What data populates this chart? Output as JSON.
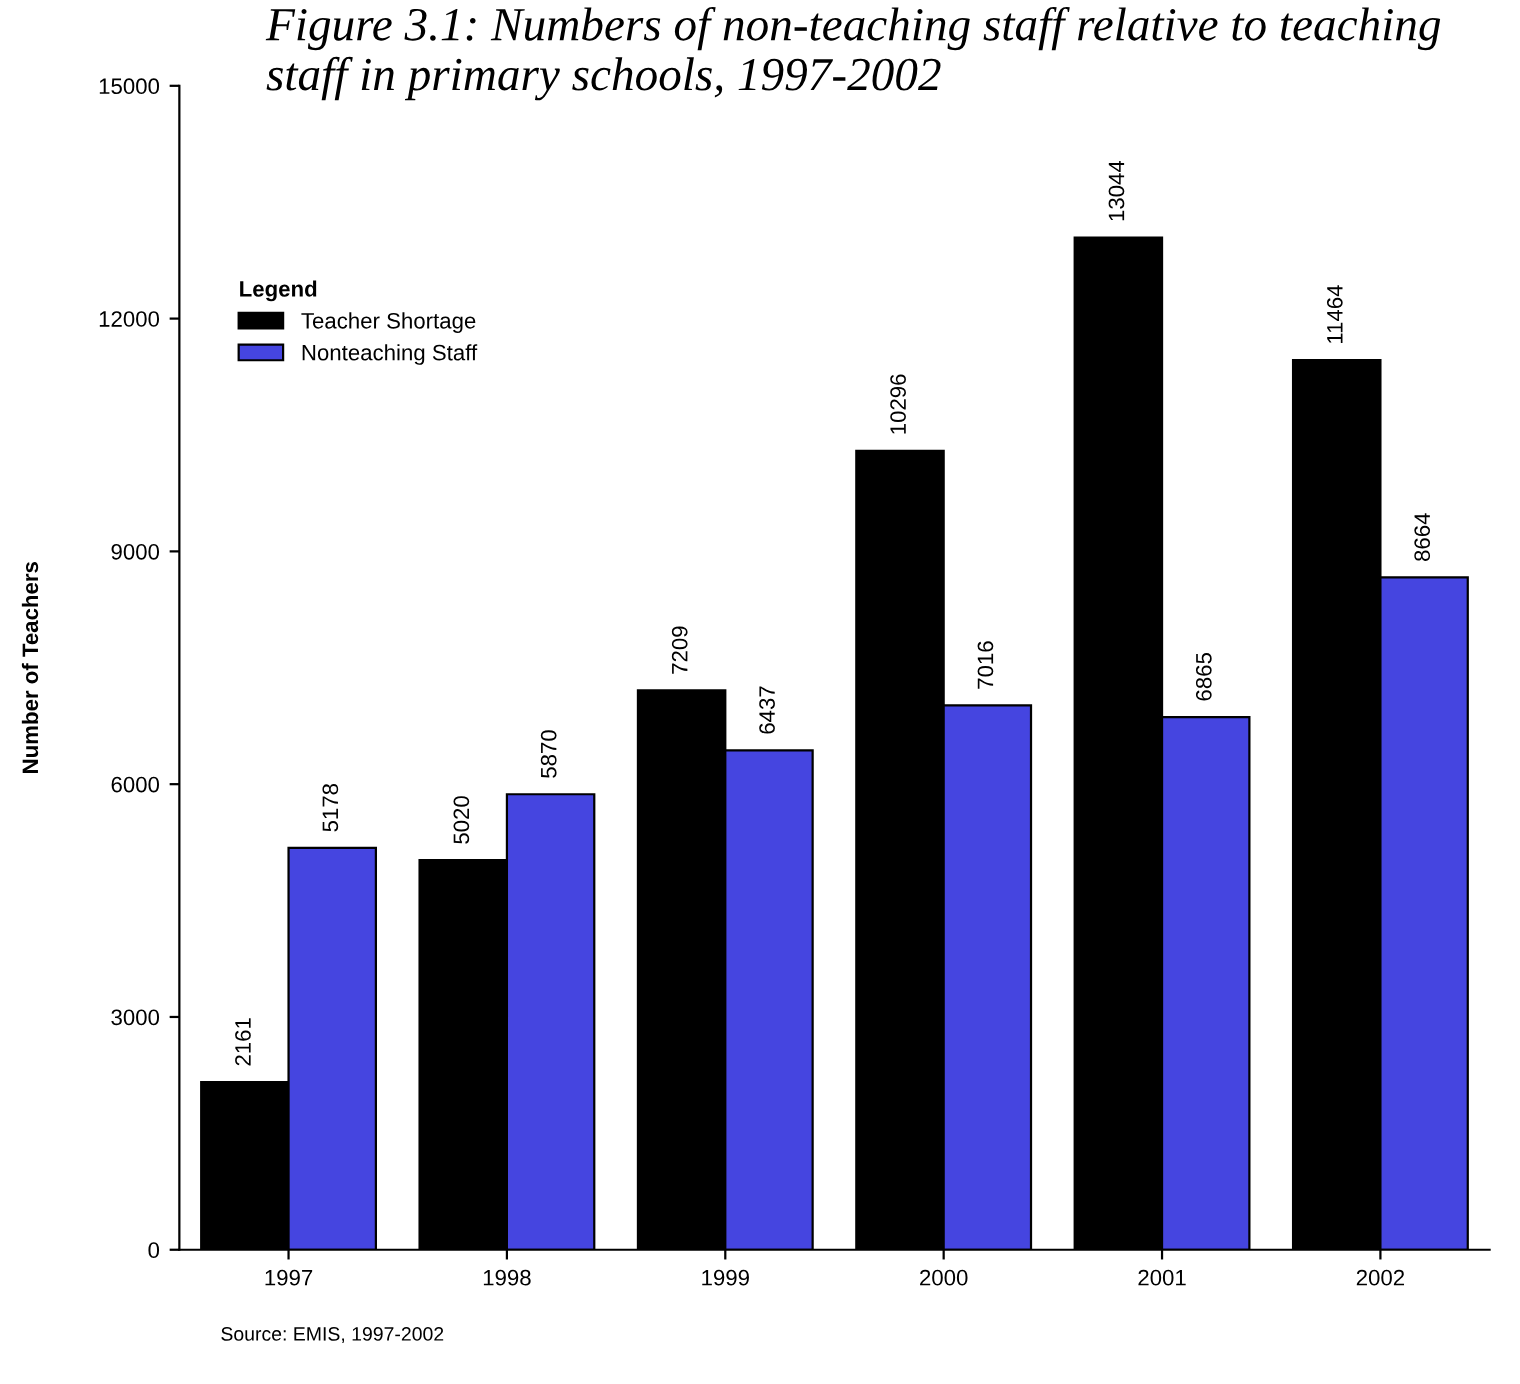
{
  "chart_data": {
    "type": "bar",
    "title": "Figure 3.1: Numbers of non-teaching staff relative to teaching staff in primary schools, 1997-2002",
    "ylabel": "Number of Teachers",
    "legend_title": "Legend",
    "categories": [
      "1997",
      "1998",
      "1999",
      "2000",
      "2001",
      "2002"
    ],
    "series": [
      {
        "name": "Teacher Shortage",
        "color": "#000000",
        "values": [
          2161,
          5020,
          7209,
          10296,
          13044,
          11464
        ]
      },
      {
        "name": "Nonteaching Staff",
        "color": "#4545e0",
        "values": [
          5178,
          5870,
          6437,
          7016,
          6865,
          8664
        ]
      }
    ],
    "ylim": [
      0,
      15000
    ],
    "yticks": [
      0,
      3000,
      6000,
      9000,
      12000,
      15000
    ],
    "data_labels": true,
    "grid": false,
    "legend": "top left",
    "annotations": [
      "Source: EMIS, 1997-2002"
    ]
  }
}
